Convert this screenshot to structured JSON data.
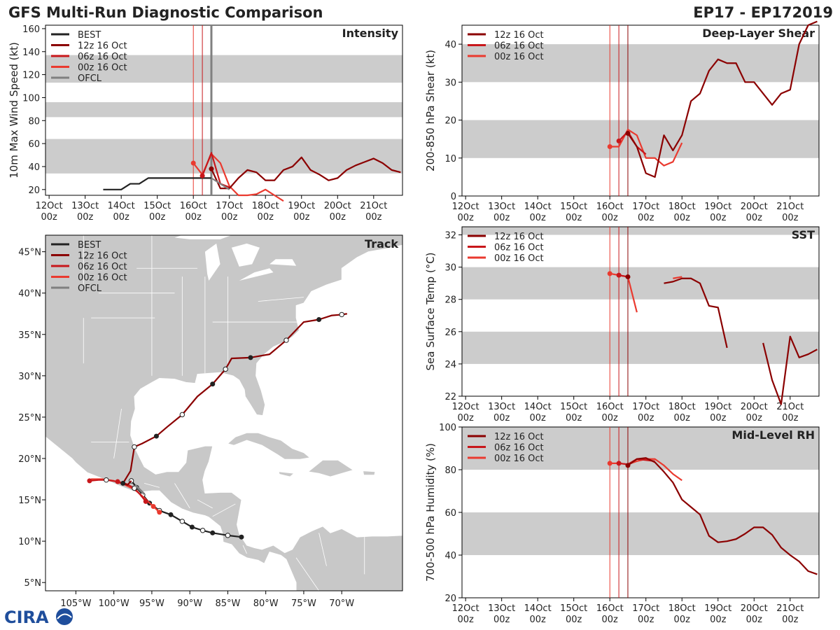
{
  "header": {
    "title": "GFS Multi-Run Diagnostic Comparison",
    "storm_id": "EP17 - EP172019"
  },
  "logo": {
    "text": "CIRA"
  },
  "colors": {
    "best": "#222222",
    "run12": "#8b0000",
    "run06": "#c8171b",
    "run00": "#ea3a2f",
    "ofcl": "#808080",
    "band": "#cccccc",
    "land": "#c8c8c8"
  },
  "x_ticks": [
    {
      "l1": "12Oct",
      "l2": "00z"
    },
    {
      "l1": "13Oct",
      "l2": "00z"
    },
    {
      "l1": "14Oct",
      "l2": "00z"
    },
    {
      "l1": "15Oct",
      "l2": "00z"
    },
    {
      "l1": "16Oct",
      "l2": "00z"
    },
    {
      "l1": "17Oct",
      "l2": "00z"
    },
    {
      "l1": "18Oct",
      "l2": "00z"
    },
    {
      "l1": "19Oct",
      "l2": "00z"
    },
    {
      "l1": "20Oct",
      "l2": "00z"
    },
    {
      "l1": "21Oct",
      "l2": "00z"
    }
  ],
  "chart_data": [
    {
      "type": "line",
      "title": "Intensity",
      "ylabel": "10m Max Wind Speed (kt)",
      "xlim_days": [
        -0.1,
        9.8
      ],
      "ylim": [
        15,
        163
      ],
      "yticks": [
        20,
        40,
        60,
        80,
        100,
        120,
        140,
        160
      ],
      "bands": [
        [
          34,
          64
        ],
        [
          83,
          96
        ],
        [
          113,
          137
        ]
      ],
      "vlines": [
        {
          "x": 4.0,
          "series": "run00"
        },
        {
          "x": 4.25,
          "series": "run06"
        },
        {
          "x": 4.5,
          "series": "ofcl",
          "width": 3
        }
      ],
      "legend": [
        {
          "label": "BEST",
          "series": "best"
        },
        {
          "label": "12z 16 Oct",
          "series": "run12"
        },
        {
          "label": "06z 16 Oct",
          "series": "run06"
        },
        {
          "label": "00z 16 Oct",
          "series": "run00"
        },
        {
          "label": "OFCL",
          "series": "ofcl"
        }
      ],
      "series": [
        {
          "name": "BEST",
          "key": "best",
          "x": [
            1.5,
            1.75,
            2.0,
            2.25,
            2.5,
            2.75,
            3.0,
            3.25,
            3.5,
            3.75,
            4.0,
            4.25,
            4.5
          ],
          "y": [
            20,
            20,
            20,
            25,
            25,
            30,
            30,
            30,
            30,
            30,
            30,
            30,
            30
          ]
        },
        {
          "name": "00z 16 Oct",
          "key": "run00",
          "x": [
            4.0,
            4.25,
            4.5,
            4.75,
            5.0,
            5.25,
            5.5,
            5.75,
            6.0,
            6.25,
            6.5
          ],
          "y": [
            43,
            33,
            51,
            43,
            23,
            15,
            15,
            16,
            20,
            15,
            10
          ],
          "marker": 0
        },
        {
          "name": "06z 16 Oct",
          "key": "run06",
          "x": [
            4.25,
            4.5,
            4.75,
            5.0
          ],
          "y": [
            32,
            52,
            25,
            22
          ],
          "marker": 0
        },
        {
          "name": "12z 16 Oct",
          "key": "run12",
          "x": [
            4.5,
            4.75,
            5.0,
            5.25,
            5.5,
            5.75,
            6.0,
            6.25,
            6.5,
            6.75,
            7.0,
            7.25,
            7.5,
            7.75,
            8.0,
            8.25,
            8.5,
            8.75,
            9.0,
            9.25,
            9.5,
            9.75
          ],
          "y": [
            38,
            21,
            21,
            30,
            37,
            35,
            28,
            28,
            37,
            40,
            48,
            37,
            33,
            28,
            30,
            37,
            41,
            44,
            47,
            43,
            37,
            35
          ],
          "marker": 0
        },
        {
          "name": "OFCL",
          "key": "ofcl",
          "x": [
            4.5,
            4.75,
            5.0
          ],
          "y": [
            30,
            25,
            20
          ]
        }
      ]
    },
    {
      "type": "line",
      "title": "Deep-Layer Shear",
      "ylabel": "200-850 hPa Shear (kt)",
      "xlim_days": [
        -0.1,
        9.8
      ],
      "ylim": [
        0,
        45
      ],
      "yticks": [
        0,
        10,
        20,
        30,
        40
      ],
      "bands": [
        [
          10,
          20
        ],
        [
          30,
          40
        ]
      ],
      "vlines": [
        {
          "x": 4.0,
          "series": "run00"
        },
        {
          "x": 4.25,
          "series": "run06"
        },
        {
          "x": 4.5,
          "series": "run12"
        }
      ],
      "legend": [
        {
          "label": "12z 16 Oct",
          "series": "run12"
        },
        {
          "label": "06z 16 Oct",
          "series": "run06"
        },
        {
          "label": "00z 16 Oct",
          "series": "run00"
        }
      ],
      "series": [
        {
          "name": "00z 16 Oct",
          "key": "run00",
          "x": [
            4.0,
            4.25,
            4.5,
            4.75,
            5.0,
            5.25,
            5.5,
            5.75,
            6.0
          ],
          "y": [
            13,
            13,
            17.5,
            16,
            10,
            10,
            8,
            9,
            14
          ],
          "marker": 0
        },
        {
          "name": "06z 16 Oct",
          "key": "run06",
          "x": [
            4.25,
            4.5,
            4.75,
            5.0
          ],
          "y": [
            14.5,
            17,
            13,
            11
          ],
          "marker": 0
        },
        {
          "name": "12z 16 Oct",
          "key": "run12",
          "x": [
            4.5,
            4.75,
            5.0,
            5.25,
            5.5,
            5.75,
            6.0,
            6.25,
            6.5,
            6.75,
            7.0,
            7.25,
            7.5,
            7.75,
            8.0,
            8.25,
            8.5,
            8.75,
            9.0,
            9.25,
            9.5,
            9.75
          ],
          "y": [
            16.5,
            13,
            6,
            5,
            16,
            12,
            16,
            25,
            27,
            33,
            36,
            35,
            35,
            30,
            30,
            27,
            24,
            27,
            28,
            40,
            45,
            46
          ],
          "marker": 0
        }
      ]
    },
    {
      "type": "line",
      "title": "SST",
      "ylabel": "Sea Surface Temp (°C)",
      "xlim_days": [
        -0.1,
        9.8
      ],
      "ylim": [
        22,
        32.5
      ],
      "yticks": [
        22,
        24,
        26,
        28,
        30,
        32
      ],
      "bands": [
        [
          24,
          26
        ],
        [
          28,
          30
        ],
        [
          32,
          32.5
        ]
      ],
      "vlines": [
        {
          "x": 4.0,
          "series": "run00"
        },
        {
          "x": 4.25,
          "series": "run06"
        },
        {
          "x": 4.5,
          "series": "run12"
        }
      ],
      "legend": [
        {
          "label": "12z 16 Oct",
          "series": "run12"
        },
        {
          "label": "06z 16 Oct",
          "series": "run06"
        },
        {
          "label": "00z 16 Oct",
          "series": "run00"
        }
      ],
      "series": [
        {
          "name": "00z 16 Oct",
          "key": "run00",
          "x": [
            4.0,
            4.25,
            4.5,
            4.75
          ],
          "y": [
            29.6,
            29.5,
            29.4,
            27.2
          ],
          "marker": 0
        },
        {
          "name": "00z 16 Oct (late)",
          "key": "run00",
          "x": [
            5.75,
            6.0
          ],
          "y": [
            29.3,
            29.4
          ]
        },
        {
          "name": "06z 16 Oct",
          "key": "run06",
          "x": [
            4.25,
            4.5
          ],
          "y": [
            29.5,
            29.4
          ],
          "marker": 0
        },
        {
          "name": "12z 16 Oct",
          "key": "run12",
          "x": [
            4.5
          ],
          "y": [
            29.4
          ],
          "marker": 0
        },
        {
          "name": "12z 16 Oct (a)",
          "key": "run12",
          "x": [
            5.5,
            5.75,
            6.0,
            6.25,
            6.5,
            6.75,
            7.0,
            7.25
          ],
          "y": [
            29.0,
            29.1,
            29.3,
            29.3,
            29.0,
            27.6,
            27.5,
            25.0
          ]
        },
        {
          "name": "12z 16 Oct (b)",
          "key": "run12",
          "x": [
            8.25,
            8.5,
            8.75,
            9.0,
            9.25,
            9.5,
            9.75
          ],
          "y": [
            25.3,
            23.0,
            21.5,
            25.7,
            24.4,
            24.6,
            24.9
          ]
        }
      ]
    },
    {
      "type": "line",
      "title": "Mid-Level RH",
      "ylabel": "700-500 hPa Humidity (%)",
      "xlim_days": [
        -0.1,
        9.8
      ],
      "ylim": [
        20,
        100
      ],
      "yticks": [
        20,
        40,
        60,
        80,
        100
      ],
      "bands": [
        [
          40,
          60
        ],
        [
          80,
          100
        ]
      ],
      "vlines": [
        {
          "x": 4.0,
          "series": "run00"
        },
        {
          "x": 4.25,
          "series": "run06"
        },
        {
          "x": 4.5,
          "series": "run12"
        }
      ],
      "legend": [
        {
          "label": "12z 16 Oct",
          "series": "run12"
        },
        {
          "label": "06z 16 Oct",
          "series": "run06"
        },
        {
          "label": "00z 16 Oct",
          "series": "run00"
        }
      ],
      "series": [
        {
          "name": "00z 16 Oct",
          "key": "run00",
          "x": [
            4.0,
            4.25,
            4.5,
            4.75,
            5.0,
            5.25,
            5.5,
            5.75,
            6.0
          ],
          "y": [
            83,
            83,
            82.5,
            84,
            85,
            85,
            82,
            78,
            75
          ],
          "marker": 0
        },
        {
          "name": "06z 16 Oct",
          "key": "run06",
          "x": [
            4.25,
            4.5,
            4.75,
            5.0,
            5.25
          ],
          "y": [
            83,
            82.5,
            85,
            84.5,
            84
          ],
          "marker": 0
        },
        {
          "name": "12z 16 Oct",
          "key": "run12",
          "x": [
            4.5,
            4.75,
            5.0,
            5.25,
            5.5,
            5.75,
            6.0,
            6.25,
            6.5,
            6.75,
            7.0,
            7.25,
            7.5,
            7.75,
            8.0,
            8.25,
            8.5,
            8.75,
            9.0,
            9.25,
            9.5,
            9.75
          ],
          "y": [
            82,
            85,
            85.5,
            83.5,
            79,
            74,
            66,
            62.5,
            59,
            49,
            46,
            46.5,
            47.5,
            50,
            53,
            53,
            49.5,
            43.5,
            40,
            37,
            32.5,
            31
          ],
          "marker": 0
        }
      ]
    },
    {
      "type": "map",
      "title": "Track",
      "lon_range": [
        -109,
        -62
      ],
      "lat_range": [
        4,
        47
      ],
      "lon_ticks": [
        {
          "v": -105,
          "label": "105°W"
        },
        {
          "v": -100,
          "label": "100°W"
        },
        {
          "v": -95,
          "label": "95°W"
        },
        {
          "v": -90,
          "label": "90°W"
        },
        {
          "v": -85,
          "label": "85°W"
        },
        {
          "v": -80,
          "label": "80°W"
        },
        {
          "v": -75,
          "label": "75°W"
        },
        {
          "v": -70,
          "label": "70°W"
        }
      ],
      "lat_ticks": [
        {
          "v": 5,
          "label": "5°N"
        },
        {
          "v": 10,
          "label": "10°N"
        },
        {
          "v": 15,
          "label": "15°N"
        },
        {
          "v": 20,
          "label": "20°N"
        },
        {
          "v": 25,
          "label": "25°N"
        },
        {
          "v": 30,
          "label": "30°N"
        },
        {
          "v": 35,
          "label": "35°N"
        },
        {
          "v": 40,
          "label": "40°N"
        },
        {
          "v": 45,
          "label": "45°N"
        }
      ],
      "legend": [
        {
          "label": "BEST",
          "series": "best"
        },
        {
          "label": "12z 16 Oct",
          "series": "run12"
        },
        {
          "label": "06z 16 Oct",
          "series": "run06"
        },
        {
          "label": "00z 16 Oct",
          "series": "run00"
        },
        {
          "label": "OFCL",
          "series": "ofcl"
        }
      ],
      "tracks": [
        {
          "name": "BEST",
          "key": "best",
          "lon": [
            -83.2,
            -85.0,
            -87.0,
            -88.3,
            -89.7,
            -91.0,
            -92.5,
            -94.0,
            -95.3,
            -96.2,
            -97.0,
            -97.7
          ],
          "lat": [
            10.5,
            10.7,
            11.0,
            11.3,
            11.7,
            12.4,
            13.2,
            13.7,
            14.6,
            15.6,
            16.5,
            17.3
          ],
          "filled": [
            0,
            2,
            4,
            6,
            8,
            10
          ],
          "open": [
            1,
            3,
            5,
            7,
            9,
            11
          ]
        },
        {
          "name": "00z 16 Oct",
          "key": "run00",
          "lon": [
            -94.0,
            -94.8,
            -95.5,
            -96.2,
            -97.2,
            -98.5,
            -100.0,
            -101.5,
            -103.0
          ],
          "lat": [
            13.5,
            14.2,
            14.8,
            15.4,
            16.2,
            16.8,
            17.3,
            17.5,
            17.5
          ],
          "filled": [
            0,
            1
          ],
          "open": []
        },
        {
          "name": "06z 16 Oct",
          "key": "run06",
          "lon": [
            -95.8,
            -96.5,
            -97.3,
            -98.3,
            -99.5,
            -101.0,
            -102.0,
            -103.2
          ],
          "lat": [
            14.8,
            15.6,
            16.4,
            16.9,
            17.2,
            17.4,
            17.4,
            17.3
          ],
          "filled": [
            0,
            4,
            7
          ],
          "open": [
            2,
            5
          ]
        },
        {
          "name": "12z 16 Oct",
          "key": "run12",
          "lon": [
            -97.7,
            -98.2,
            -98.8,
            -97.8,
            -97.3,
            -96.3,
            -94.4,
            -93.0,
            -91.0,
            -89.0,
            -87.0,
            -85.3,
            -84.5,
            -82.0,
            -79.5,
            -77.3,
            -75.0,
            -73.0,
            -71.3,
            -70.0,
            -69.3
          ],
          "lat": [
            17.3,
            16.8,
            17.0,
            18.5,
            21.4,
            21.8,
            22.7,
            23.8,
            25.3,
            27.5,
            29.0,
            30.8,
            32.1,
            32.2,
            32.6,
            34.3,
            36.5,
            36.8,
            37.3,
            37.4,
            37.5
          ],
          "filled": [
            2,
            6,
            10,
            13,
            17
          ],
          "open": [
            4,
            8,
            11,
            15,
            19
          ]
        },
        {
          "name": "OFCL",
          "key": "ofcl",
          "lon": [
            -97.2,
            -96.0
          ],
          "lat": [
            16.8,
            15.7
          ],
          "filled": [],
          "open": []
        }
      ]
    }
  ]
}
